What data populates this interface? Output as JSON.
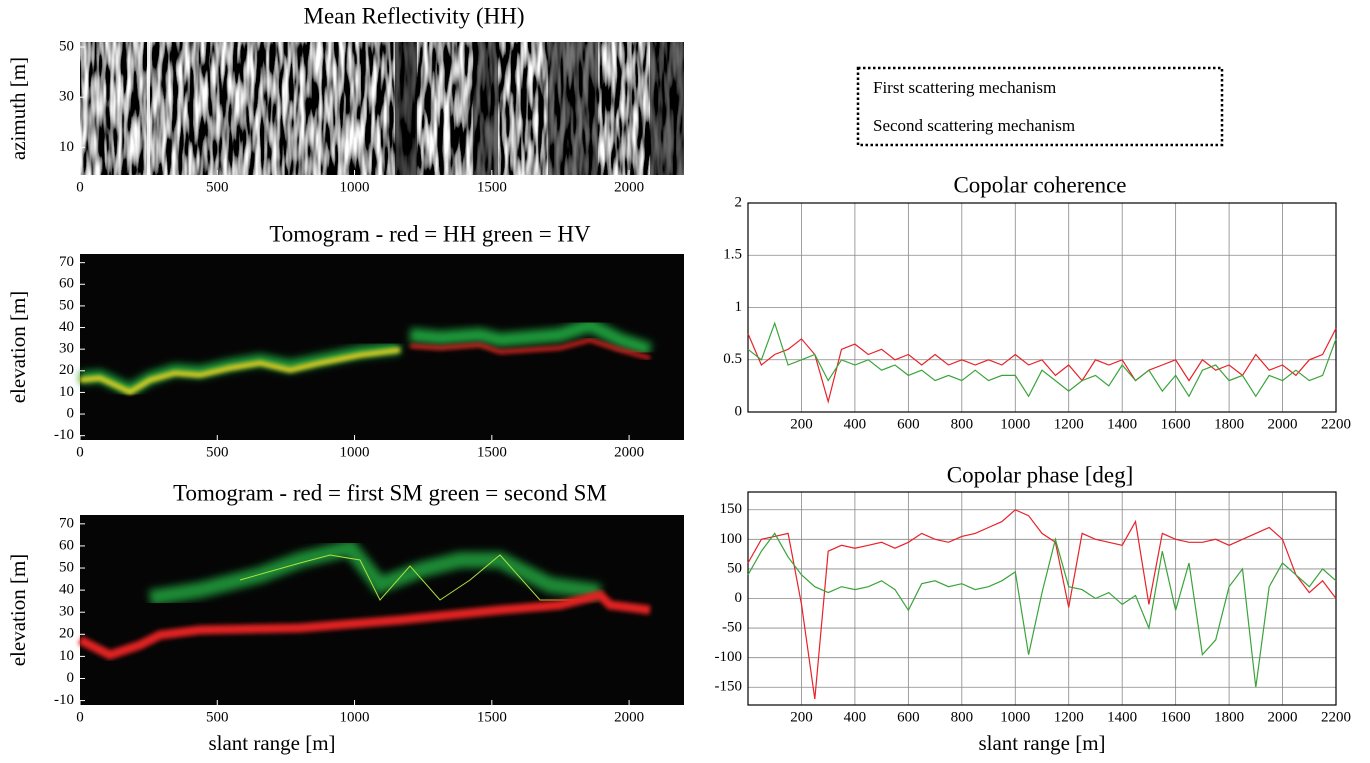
{
  "legend": [
    {
      "name": "First scattering mechanism",
      "color": "#e8222a"
    },
    {
      "name": "Second scattering mechanism",
      "color": "#3aa43a"
    }
  ],
  "chart_data": [
    {
      "type": "image",
      "title": "Mean Reflectivity (HH)",
      "ylabel": "azimuth [m]",
      "xlim": [
        0,
        2200
      ],
      "ylim": [
        -1,
        52
      ],
      "xticks": [
        0,
        500,
        1000,
        1500,
        2000
      ],
      "yticks": [
        10,
        30,
        50
      ],
      "grid": false
    },
    {
      "type": "image",
      "title": "Tomogram - red = HH   green = HV",
      "ylabel": "elevation [m]",
      "xlim": [
        0,
        2200
      ],
      "ylim": [
        -12,
        74
      ],
      "xticks": [
        0,
        500,
        1000,
        1500,
        2000
      ],
      "yticks": [
        -10,
        0,
        10,
        20,
        30,
        40,
        50,
        60,
        70
      ],
      "grid": false
    },
    {
      "type": "image",
      "title": "Tomogram - red = first SM   green = second SM",
      "ylabel": "elevation [m]",
      "xlabel": "slant range [m]",
      "xlim": [
        0,
        2200
      ],
      "ylim": [
        -12,
        74
      ],
      "xticks": [
        0,
        500,
        1000,
        1500,
        2000
      ],
      "yticks": [
        -10,
        0,
        10,
        20,
        30,
        40,
        50,
        60,
        70
      ],
      "grid": false
    },
    {
      "type": "line",
      "title": "Copolar coherence",
      "xlim": [
        0,
        2200
      ],
      "ylim": [
        0,
        2
      ],
      "xticks": [
        200,
        400,
        600,
        800,
        1000,
        1200,
        1400,
        1600,
        1800,
        2000,
        2200
      ],
      "yticks": [
        0,
        0.5,
        1,
        1.5,
        2
      ],
      "grid": true,
      "x": [
        0,
        50,
        100,
        150,
        200,
        250,
        300,
        350,
        400,
        450,
        500,
        550,
        600,
        650,
        700,
        750,
        800,
        850,
        900,
        950,
        1000,
        1050,
        1100,
        1150,
        1200,
        1250,
        1300,
        1350,
        1400,
        1450,
        1500,
        1550,
        1600,
        1650,
        1700,
        1750,
        1800,
        1850,
        1900,
        1950,
        2000,
        2050,
        2100,
        2150,
        2200
      ],
      "series": [
        {
          "color": "#e8222a",
          "values": [
            0.75,
            0.45,
            0.55,
            0.6,
            0.7,
            0.55,
            0.1,
            0.6,
            0.65,
            0.55,
            0.6,
            0.5,
            0.55,
            0.45,
            0.55,
            0.45,
            0.5,
            0.45,
            0.5,
            0.45,
            0.55,
            0.45,
            0.5,
            0.35,
            0.45,
            0.3,
            0.5,
            0.45,
            0.5,
            0.3,
            0.4,
            0.45,
            0.5,
            0.3,
            0.5,
            0.4,
            0.45,
            0.35,
            0.55,
            0.4,
            0.45,
            0.35,
            0.5,
            0.55,
            0.8
          ]
        },
        {
          "color": "#3aa43a",
          "values": [
            0.6,
            0.5,
            0.85,
            0.45,
            0.5,
            0.55,
            0.3,
            0.5,
            0.45,
            0.5,
            0.4,
            0.45,
            0.35,
            0.4,
            0.3,
            0.35,
            0.3,
            0.4,
            0.3,
            0.35,
            0.35,
            0.15,
            0.4,
            0.3,
            0.2,
            0.3,
            0.35,
            0.25,
            0.45,
            0.3,
            0.4,
            0.2,
            0.35,
            0.15,
            0.4,
            0.45,
            0.3,
            0.35,
            0.15,
            0.35,
            0.3,
            0.4,
            0.3,
            0.35,
            0.7
          ]
        }
      ]
    },
    {
      "type": "line",
      "title": "Copolar phase [deg]",
      "xlabel": "slant range [m]",
      "xlim": [
        0,
        2200
      ],
      "ylim": [
        -180,
        180
      ],
      "xticks": [
        200,
        400,
        600,
        800,
        1000,
        1200,
        1400,
        1600,
        1800,
        2000,
        2200
      ],
      "yticks": [
        -150,
        -100,
        -50,
        0,
        50,
        100,
        150
      ],
      "grid": true,
      "x": [
        0,
        50,
        100,
        150,
        200,
        250,
        300,
        350,
        400,
        450,
        500,
        550,
        600,
        650,
        700,
        750,
        800,
        850,
        900,
        950,
        1000,
        1050,
        1100,
        1150,
        1200,
        1250,
        1300,
        1350,
        1400,
        1450,
        1500,
        1550,
        1600,
        1650,
        1700,
        1750,
        1800,
        1850,
        1900,
        1950,
        2000,
        2050,
        2100,
        2150,
        2200
      ],
      "series": [
        {
          "color": "#e8222a",
          "values": [
            60,
            100,
            105,
            110,
            -10,
            -170,
            80,
            90,
            85,
            90,
            95,
            85,
            95,
            110,
            100,
            95,
            105,
            110,
            120,
            130,
            150,
            140,
            110,
            95,
            -15,
            110,
            100,
            95,
            90,
            130,
            -10,
            110,
            100,
            95,
            95,
            100,
            90,
            100,
            110,
            120,
            100,
            40,
            10,
            30,
            0
          ]
        },
        {
          "color": "#3aa43a",
          "values": [
            40,
            80,
            110,
            70,
            40,
            20,
            10,
            20,
            15,
            20,
            30,
            15,
            -20,
            25,
            30,
            20,
            25,
            15,
            20,
            30,
            45,
            -95,
            10,
            100,
            20,
            15,
            0,
            10,
            -10,
            5,
            -50,
            80,
            -20,
            60,
            -95,
            -70,
            20,
            50,
            -150,
            20,
            60,
            40,
            20,
            50,
            30
          ]
        }
      ]
    }
  ]
}
